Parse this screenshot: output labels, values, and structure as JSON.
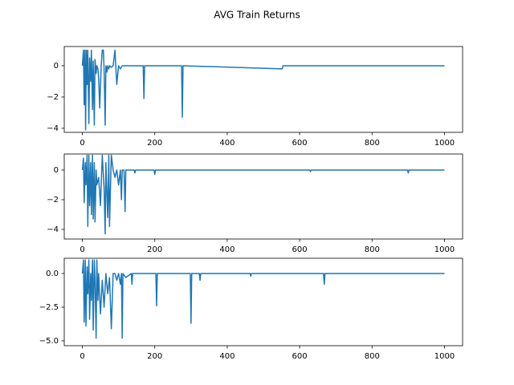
{
  "title": "AVG Train Returns",
  "chart_data": [
    {
      "type": "line",
      "x": [
        0,
        3,
        5,
        7,
        9,
        11,
        13,
        15,
        18,
        20,
        23,
        25,
        28,
        30,
        33,
        35,
        38,
        40,
        43,
        45,
        48,
        52,
        55,
        58,
        60,
        63,
        65,
        68,
        70,
        73,
        75,
        80,
        85,
        90,
        95,
        100,
        105,
        110,
        120,
        168,
        170,
        172,
        274,
        276,
        278,
        552,
        554,
        556,
        1000
      ],
      "series": [
        {
          "color": "#1f77b4",
          "values": [
            0,
            1,
            -2.5,
            1,
            -4.1,
            1,
            -1.2,
            1,
            -3.7,
            0.5,
            -1,
            1,
            -2.8,
            0.3,
            -3.8,
            0.4,
            -0.5,
            0,
            -0.2,
            -0.8,
            -2.7,
            0,
            1,
            1,
            -0.2,
            -3.8,
            0,
            -0.4,
            0,
            -0.2,
            0,
            -0.1,
            0,
            1,
            -1.2,
            0,
            -0.2,
            0,
            0,
            0,
            -2.1,
            0,
            0,
            -3.3,
            0,
            -0.2,
            0,
            0,
            0
          ]
        }
      ],
      "xlim": [
        -50,
        1050
      ],
      "ylim": [
        -4.26,
        1.23
      ],
      "xticks": [
        0,
        200,
        400,
        600,
        800,
        1000
      ],
      "yticks": [
        {
          "value": -4,
          "label": "−4"
        },
        {
          "value": -2,
          "label": "−2"
        },
        0
      ]
    },
    {
      "type": "line",
      "x": [
        0,
        3,
        5,
        8,
        10,
        13,
        15,
        18,
        20,
        23,
        25,
        28,
        30,
        33,
        35,
        38,
        40,
        45,
        50,
        55,
        60,
        63,
        65,
        70,
        73,
        75,
        80,
        85,
        90,
        95,
        100,
        105,
        108,
        110,
        115,
        118,
        120,
        125,
        143,
        145,
        147,
        198,
        200,
        202,
        628,
        630,
        632,
        898,
        900,
        902,
        1000
      ],
      "series": [
        {
          "color": "#1f77b4",
          "values": [
            0,
            0.8,
            -2.2,
            0.5,
            -1,
            1,
            -3.8,
            1,
            -2.4,
            0.5,
            -3,
            1,
            -3.3,
            0.5,
            -3.5,
            0,
            -1,
            -0.5,
            -2.4,
            1,
            -1.2,
            -4.3,
            0.5,
            -3.2,
            1,
            -3.8,
            1,
            0,
            -0.5,
            0,
            -1,
            0,
            -2,
            0,
            0,
            -2.8,
            0,
            0,
            0,
            -0.2,
            0,
            0,
            -0.3,
            0,
            0,
            -0.1,
            0,
            0,
            -0.2,
            0,
            0
          ]
        }
      ],
      "xlim": [
        -50,
        1050
      ],
      "ylim": [
        -4.65,
        1.08
      ],
      "xticks": [
        0,
        200,
        400,
        600,
        800,
        1000
      ],
      "yticks": [
        {
          "value": -4,
          "label": "−4"
        },
        {
          "value": -2,
          "label": "−2"
        },
        0
      ]
    },
    {
      "type": "line",
      "x": [
        0,
        3,
        5,
        8,
        10,
        13,
        15,
        18,
        20,
        23,
        25,
        28,
        30,
        33,
        35,
        38,
        40,
        43,
        45,
        50,
        55,
        60,
        65,
        70,
        75,
        80,
        85,
        90,
        95,
        100,
        105,
        108,
        110,
        112,
        120,
        135,
        137,
        139,
        203,
        205,
        207,
        298,
        300,
        302,
        323,
        325,
        327,
        463,
        465,
        467,
        666,
        668,
        670,
        1000
      ],
      "series": [
        {
          "color": "#1f77b4",
          "values": [
            0,
            1,
            -3.6,
            1,
            -3.9,
            0.5,
            -1.5,
            1,
            -3.4,
            0,
            -2,
            1,
            -4.2,
            1,
            -0.5,
            -4.8,
            1,
            -2,
            0,
            -3,
            -0.5,
            -2.5,
            0,
            -1.5,
            -0.3,
            -4.1,
            0,
            0,
            -0.5,
            0,
            -0.8,
            0,
            -4.8,
            0,
            -0.3,
            0,
            -0.8,
            0,
            0,
            -2.4,
            0,
            0,
            -3.7,
            0,
            0,
            -0.5,
            0,
            0,
            -0.2,
            0,
            0,
            -0.8,
            0,
            0
          ]
        }
      ],
      "xlim": [
        -50,
        1050
      ],
      "ylim": [
        -5.36,
        1.13
      ],
      "xticks": [
        0,
        200,
        400,
        600,
        800,
        1000
      ],
      "yticks": [
        {
          "value": -5,
          "label": "−5.0"
        },
        {
          "value": -2.5,
          "label": "−2.5"
        },
        {
          "value": 0,
          "label": "0.0"
        }
      ]
    }
  ]
}
